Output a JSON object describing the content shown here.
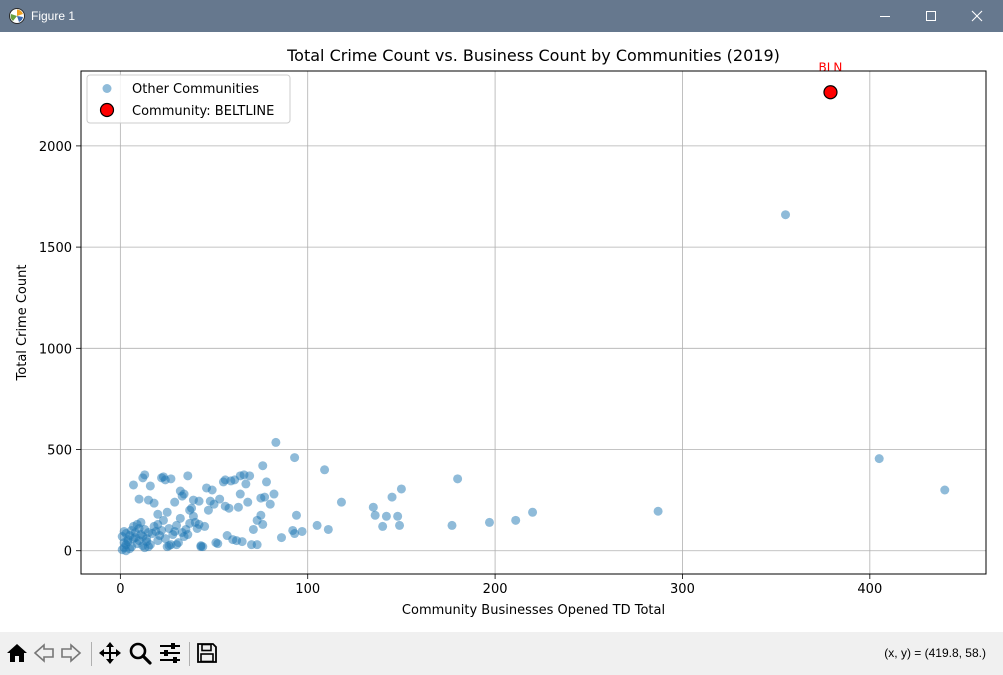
{
  "window": {
    "title": "Figure 1",
    "controls": {
      "minimize": "minimize-icon",
      "maximize": "maximize-icon",
      "close": "close-icon"
    }
  },
  "toolbar": {
    "icons": [
      "home-icon",
      "back-icon",
      "forward-icon",
      "pan-icon",
      "zoom-icon",
      "configure-subplots-icon",
      "save-icon"
    ],
    "coords_text": "(x, y) = (419.8, 58.)"
  },
  "colors": {
    "series_other": "#1f77b4",
    "series_highlight": "#ff0000",
    "annotation": "#ff0000",
    "titlebar": "#66788e",
    "toolbar": "#f0f0f0"
  },
  "chart_data": {
    "type": "scatter",
    "title": "Total Crime Count vs. Business Count by Communities (2019)",
    "xlabel": "Community Businesses Opened TD Total",
    "ylabel": "Total Crime Count",
    "xlim": [
      -21,
      462
    ],
    "ylim": [
      -115,
      2370
    ],
    "xticks": [
      0,
      100,
      200,
      300,
      400
    ],
    "yticks": [
      0,
      500,
      1000,
      1500,
      2000
    ],
    "grid": true,
    "legend": "top-left",
    "series": [
      {
        "name": "Other Communities",
        "points": [
          [
            1,
            5
          ],
          [
            2,
            15
          ],
          [
            3,
            30
          ],
          [
            2,
            40
          ],
          [
            4,
            55
          ],
          [
            1,
            70
          ],
          [
            3,
            85
          ],
          [
            2,
            95
          ],
          [
            5,
            10
          ],
          [
            6,
            20
          ],
          [
            4,
            45
          ],
          [
            7,
            60
          ],
          [
            5,
            75
          ],
          [
            8,
            90
          ],
          [
            3,
            0
          ],
          [
            6,
            100
          ],
          [
            7,
            120
          ],
          [
            9,
            35
          ],
          [
            10,
            50
          ],
          [
            8,
            65
          ],
          [
            11,
            80
          ],
          [
            12,
            25
          ],
          [
            13,
            15
          ],
          [
            10,
            110
          ],
          [
            9,
            130
          ],
          [
            14,
            45
          ],
          [
            12,
            70
          ],
          [
            15,
            90
          ],
          [
            11,
            140
          ],
          [
            13,
            105
          ],
          [
            16,
            30
          ],
          [
            14,
            60
          ],
          [
            17,
            85
          ],
          [
            18,
            120
          ],
          [
            15,
            20
          ],
          [
            19,
            95
          ],
          [
            20,
            50
          ],
          [
            21,
            75
          ],
          [
            22,
            100
          ],
          [
            20,
            130
          ],
          [
            23,
            150
          ],
          [
            24,
            60
          ],
          [
            25,
            20
          ],
          [
            26,
            110
          ],
          [
            27,
            30
          ],
          [
            28,
            80
          ],
          [
            29,
            95
          ],
          [
            30,
            125
          ],
          [
            31,
            40
          ],
          [
            32,
            160
          ],
          [
            33,
            90
          ],
          [
            34,
            70
          ],
          [
            35,
            105
          ],
          [
            36,
            80
          ],
          [
            37,
            135
          ],
          [
            38,
            210
          ],
          [
            39,
            170
          ],
          [
            40,
            140
          ],
          [
            41,
            110
          ],
          [
            42,
            130
          ],
          [
            44,
            20
          ],
          [
            45,
            120
          ],
          [
            47,
            200
          ],
          [
            48,
            245
          ],
          [
            50,
            230
          ],
          [
            51,
            40
          ],
          [
            52,
            35
          ],
          [
            53,
            255
          ],
          [
            55,
            340
          ],
          [
            56,
            220
          ],
          [
            57,
            75
          ],
          [
            58,
            210
          ],
          [
            60,
            55
          ],
          [
            61,
            350
          ],
          [
            62,
            50
          ],
          [
            63,
            215
          ],
          [
            64,
            280
          ],
          [
            65,
            45
          ],
          [
            67,
            330
          ],
          [
            68,
            240
          ],
          [
            70,
            30
          ],
          [
            71,
            105
          ],
          [
            73,
            150
          ],
          [
            75,
            175
          ],
          [
            75,
            260
          ],
          [
            76,
            130
          ],
          [
            76,
            420
          ],
          [
            77,
            265
          ],
          [
            78,
            340
          ],
          [
            80,
            230
          ],
          [
            82,
            280
          ],
          [
            83,
            535
          ],
          [
            86,
            65
          ],
          [
            92,
            100
          ],
          [
            93,
            85
          ],
          [
            93,
            460
          ],
          [
            94,
            175
          ],
          [
            97,
            95
          ],
          [
            105,
            125
          ],
          [
            109,
            400
          ],
          [
            111,
            105
          ],
          [
            118,
            240
          ],
          [
            135,
            215
          ],
          [
            136,
            175
          ],
          [
            140,
            120
          ],
          [
            142,
            170
          ],
          [
            145,
            265
          ],
          [
            148,
            170
          ],
          [
            149,
            125
          ],
          [
            150,
            305
          ],
          [
            177,
            125
          ],
          [
            180,
            355
          ],
          [
            197,
            140
          ],
          [
            211,
            150
          ],
          [
            220,
            190
          ],
          [
            287,
            195
          ],
          [
            355,
            1660
          ],
          [
            405,
            455
          ],
          [
            440,
            300
          ],
          [
            7,
            325
          ],
          [
            10,
            255
          ],
          [
            12,
            360
          ],
          [
            13,
            375
          ],
          [
            15,
            250
          ],
          [
            16,
            320
          ],
          [
            18,
            235
          ],
          [
            20,
            180
          ],
          [
            22,
            360
          ],
          [
            23,
            365
          ],
          [
            24,
            350
          ],
          [
            25,
            190
          ],
          [
            27,
            355
          ],
          [
            29,
            240
          ],
          [
            32,
            295
          ],
          [
            33,
            270
          ],
          [
            34,
            280
          ],
          [
            36,
            370
          ],
          [
            37,
            200
          ],
          [
            39,
            250
          ],
          [
            42,
            245
          ],
          [
            43,
            25
          ],
          [
            46,
            310
          ],
          [
            49,
            300
          ],
          [
            56,
            350
          ],
          [
            59,
            345
          ],
          [
            64,
            370
          ],
          [
            66,
            375
          ],
          [
            69,
            370
          ],
          [
            73,
            30
          ],
          [
            26,
            25
          ],
          [
            30,
            30
          ],
          [
            43,
            20
          ]
        ]
      },
      {
        "name": "Community: BELTLINE",
        "points": [
          [
            379,
            2265
          ]
        ],
        "annotation": "BLN"
      }
    ]
  }
}
